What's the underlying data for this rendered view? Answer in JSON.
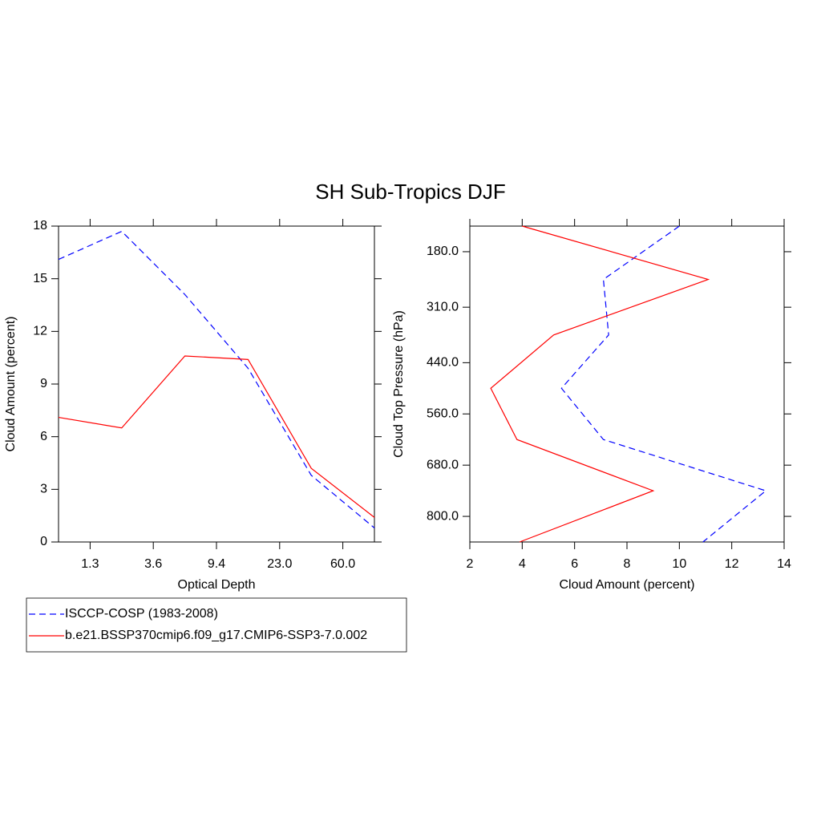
{
  "title": "SH Sub-Tropics DJF",
  "chart_data": [
    {
      "type": "line",
      "xlabel": "Optical Depth",
      "ylabel": "Cloud Amount (percent)",
      "x": [
        0,
        1,
        2,
        3,
        4,
        5
      ],
      "xlim": [
        0,
        5
      ],
      "xticks": [
        {
          "value": 0.5,
          "label": "1.3"
        },
        {
          "value": 1.5,
          "label": "3.6"
        },
        {
          "value": 2.5,
          "label": "9.4"
        },
        {
          "value": 3.5,
          "label": "23.0"
        },
        {
          "value": 4.5,
          "label": "60.0"
        }
      ],
      "ylim": [
        0,
        18
      ],
      "yticks": [
        0,
        3,
        6,
        9,
        12,
        15,
        18
      ],
      "series": [
        {
          "name": "ISCCP-COSP (1983-2008)",
          "color": "#0000ff",
          "dashed": true,
          "values": [
            16.1,
            17.7,
            14.1,
            9.9,
            3.8,
            0.8
          ]
        },
        {
          "name": "b.e21.BSSP370cmip6.f09_g17.CMIP6-SSP3-7.0.002",
          "color": "#ff0000",
          "dashed": false,
          "values": [
            7.1,
            6.5,
            10.6,
            10.4,
            4.2,
            1.4
          ]
        }
      ]
    },
    {
      "type": "line",
      "xlabel": "Cloud Amount (percent)",
      "ylabel": "Cloud Top Pressure (hPa)",
      "y": [
        120,
        245,
        375,
        500,
        620,
        740,
        860
      ],
      "ylim": [
        860,
        120
      ],
      "yticks": [
        {
          "value": 180,
          "label": "180.0"
        },
        {
          "value": 310,
          "label": "310.0"
        },
        {
          "value": 440,
          "label": "440.0"
        },
        {
          "value": 560,
          "label": "560.0"
        },
        {
          "value": 680,
          "label": "680.0"
        },
        {
          "value": 800,
          "label": "800.0"
        }
      ],
      "xlim": [
        2,
        14
      ],
      "xticks": [
        2,
        4,
        6,
        8,
        10,
        12,
        14
      ],
      "series": [
        {
          "color": "#0000ff",
          "dashed": true,
          "values": [
            10.0,
            7.1,
            7.3,
            5.5,
            7.1,
            13.3,
            10.9
          ]
        },
        {
          "color": "#ff0000",
          "dashed": false,
          "values": [
            4.0,
            11.1,
            5.2,
            2.8,
            3.8,
            9.0,
            3.9
          ]
        }
      ]
    }
  ]
}
